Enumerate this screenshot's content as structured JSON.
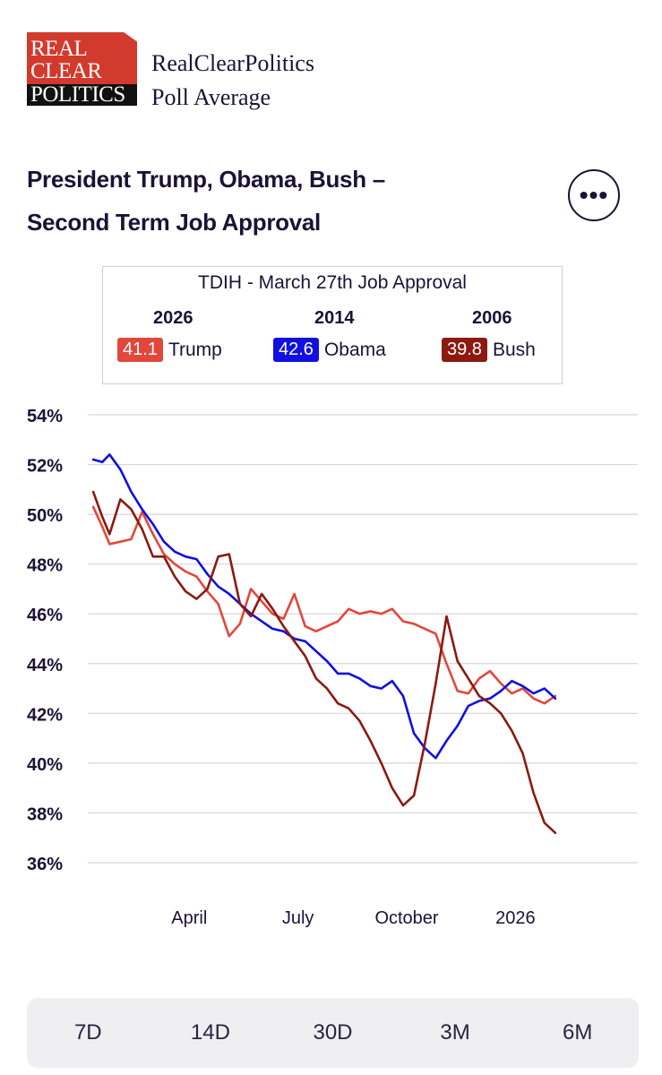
{
  "brand": {
    "logo_lines": [
      "REAL",
      "CLEAR",
      "POLITICS"
    ],
    "name": "RealClearPolitics",
    "subtitle": "Poll Average"
  },
  "title_lines": [
    "President Trump, Obama, Bush –",
    "Second Term Job Approval"
  ],
  "more_button": {
    "label": "•••"
  },
  "legend": {
    "title": "TDIH - March 27th Job Approval",
    "entries": [
      {
        "year": "2026",
        "value": "41.1",
        "name": "Trump",
        "color": "#e2473c"
      },
      {
        "year": "2014",
        "value": "42.6",
        "name": "Obama",
        "color": "#1010e0"
      },
      {
        "year": "2006",
        "value": "39.8",
        "name": "Bush",
        "color": "#8b1a10"
      }
    ]
  },
  "chart_data": {
    "type": "line",
    "title": "President Trump, Obama, Bush – Second Term Job Approval",
    "ylabel": "",
    "xlabel": "",
    "ylim": [
      36,
      54
    ],
    "yticks": [
      54,
      52,
      50,
      48,
      46,
      44,
      42,
      40,
      38,
      36
    ],
    "ytick_suffix": "%",
    "xlim": [
      0,
      12.9
    ],
    "xticks": [
      {
        "x": 2.8,
        "label": "April"
      },
      {
        "x": 5.8,
        "label": "July"
      },
      {
        "x": 8.8,
        "label": "October"
      },
      {
        "x": 11.8,
        "label": "2026"
      }
    ],
    "grid": true,
    "series": [
      {
        "name": "Trump",
        "color": "#e2473c",
        "x": [
          0.15,
          0.4,
          0.6,
          0.9,
          1.2,
          1.5,
          1.8,
          2.1,
          2.4,
          2.7,
          3.0,
          3.3,
          3.6,
          3.9,
          4.2,
          4.5,
          4.8,
          5.1,
          5.4,
          5.7,
          6.0,
          6.3,
          6.6,
          6.9,
          7.2,
          7.5,
          7.8,
          8.1,
          8.4,
          8.7,
          9.0,
          9.3,
          9.6,
          9.9,
          10.2,
          10.5,
          10.8,
          11.1,
          11.4,
          11.7,
          12.0,
          12.3,
          12.6,
          12.9
        ],
        "y": [
          50.3,
          49.5,
          48.8,
          48.9,
          49.0,
          50.1,
          49.2,
          48.4,
          48.0,
          47.7,
          47.5,
          46.9,
          46.4,
          45.1,
          45.6,
          47.0,
          46.5,
          46.0,
          45.8,
          46.8,
          45.5,
          45.3,
          45.5,
          45.7,
          46.2,
          46.0,
          46.1,
          46.0,
          46.2,
          45.7,
          45.6,
          45.4,
          45.2,
          44.0,
          42.9,
          42.8,
          43.4,
          43.7,
          43.2,
          42.8,
          43.0,
          42.6,
          42.4,
          42.7
        ]
      },
      {
        "name": "Obama",
        "color": "#1010e0",
        "x": [
          0.15,
          0.4,
          0.6,
          0.9,
          1.2,
          1.5,
          1.8,
          2.1,
          2.4,
          2.7,
          3.0,
          3.3,
          3.6,
          3.9,
          4.2,
          4.5,
          4.8,
          5.1,
          5.4,
          5.7,
          6.0,
          6.3,
          6.6,
          6.9,
          7.2,
          7.5,
          7.8,
          8.1,
          8.4,
          8.7,
          9.0,
          9.3,
          9.6,
          9.9,
          10.2,
          10.5,
          10.8,
          11.1,
          11.4,
          11.7,
          12.0,
          12.3,
          12.6,
          12.9
        ],
        "y": [
          52.2,
          52.1,
          52.4,
          51.8,
          50.9,
          50.2,
          49.6,
          48.9,
          48.5,
          48.3,
          48.2,
          47.6,
          47.1,
          46.8,
          46.4,
          46.0,
          45.7,
          45.4,
          45.3,
          45.0,
          44.9,
          44.5,
          44.1,
          43.6,
          43.6,
          43.4,
          43.1,
          43.0,
          43.3,
          42.7,
          41.2,
          40.6,
          40.2,
          40.9,
          41.5,
          42.3,
          42.5,
          42.6,
          42.9,
          43.3,
          43.1,
          42.8,
          43.0,
          42.6
        ]
      },
      {
        "name": "Bush",
        "color": "#8b1a10",
        "x": [
          0.15,
          0.4,
          0.6,
          0.9,
          1.2,
          1.5,
          1.8,
          2.1,
          2.4,
          2.7,
          3.0,
          3.3,
          3.6,
          3.9,
          4.2,
          4.5,
          4.8,
          5.1,
          5.4,
          5.7,
          6.0,
          6.3,
          6.6,
          6.9,
          7.2,
          7.5,
          7.8,
          8.1,
          8.4,
          8.7,
          9.0,
          9.3,
          9.6,
          9.9,
          10.2,
          10.5,
          10.8,
          11.1,
          11.4,
          11.7,
          12.0,
          12.3,
          12.6,
          12.9
        ],
        "y": [
          50.9,
          49.9,
          49.2,
          50.6,
          50.2,
          49.4,
          48.3,
          48.3,
          47.5,
          46.9,
          46.6,
          47.0,
          48.3,
          48.4,
          46.4,
          45.9,
          46.8,
          46.2,
          45.5,
          44.9,
          44.3,
          43.4,
          43.0,
          42.4,
          42.2,
          41.7,
          40.9,
          40.0,
          39.0,
          38.3,
          38.7,
          40.8,
          43.2,
          45.9,
          44.1,
          43.4,
          42.7,
          42.4,
          42.0,
          41.3,
          40.4,
          38.8,
          37.6,
          37.2
        ]
      }
    ]
  },
  "tabs": [
    "7D",
    "14D",
    "30D",
    "3M",
    "6M"
  ]
}
